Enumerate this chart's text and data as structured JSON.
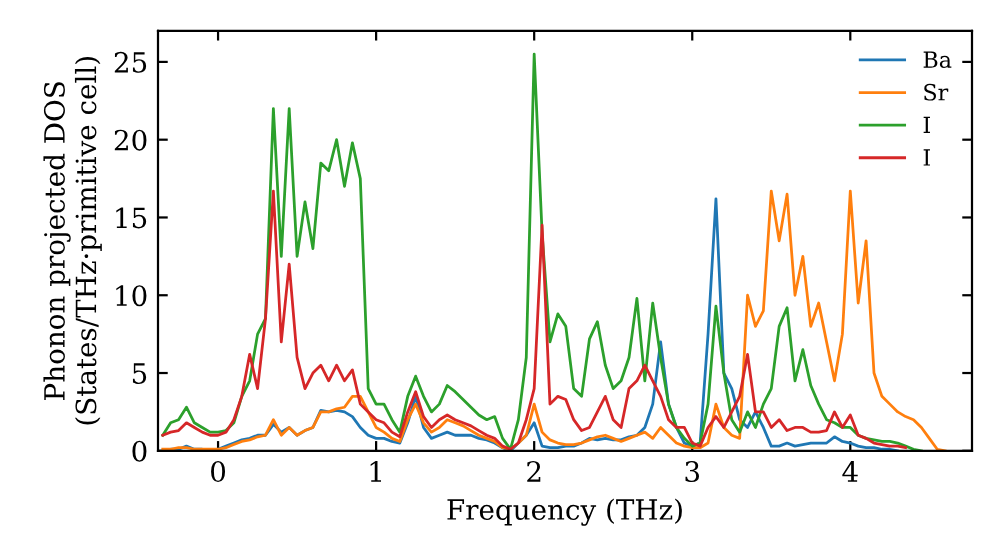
{
  "chart_data": {
    "type": "line",
    "xlabel": "Frequency (THz)",
    "ylabel": "Phonon projected DOS\n(States/THz·primitive cell)",
    "x": [
      -0.35,
      -0.3,
      -0.25,
      -0.2,
      -0.15,
      -0.1,
      -0.05,
      0,
      0.05,
      0.1,
      0.15,
      0.2,
      0.25,
      0.3,
      0.35,
      0.4,
      0.45,
      0.5,
      0.55,
      0.6,
      0.65,
      0.7,
      0.75,
      0.8,
      0.85,
      0.9,
      0.95,
      1.0,
      1.05,
      1.1,
      1.15,
      1.2,
      1.25,
      1.3,
      1.35,
      1.4,
      1.45,
      1.5,
      1.55,
      1.6,
      1.65,
      1.7,
      1.75,
      1.8,
      1.85,
      1.9,
      1.95,
      2.0,
      2.05,
      2.1,
      2.15,
      2.2,
      2.25,
      2.3,
      2.35,
      2.4,
      2.45,
      2.5,
      2.55,
      2.6,
      2.65,
      2.7,
      2.75,
      2.8,
      2.85,
      2.9,
      2.95,
      3.0,
      3.05,
      3.1,
      3.15,
      3.2,
      3.25,
      3.3,
      3.35,
      3.4,
      3.45,
      3.5,
      3.55,
      3.6,
      3.65,
      3.7,
      3.75,
      3.8,
      3.85,
      3.9,
      3.95,
      4.0,
      4.05,
      4.1,
      4.15,
      4.2,
      4.25,
      4.3,
      4.35,
      4.4,
      4.45,
      4.5,
      4.55,
      4.6
    ],
    "series": [
      {
        "name": "Ba",
        "color": "#1f77b4",
        "values": [
          0,
          0.1,
          0.1,
          0.3,
          0.1,
          0.1,
          0,
          0.1,
          0.3,
          0.5,
          0.7,
          0.8,
          1.0,
          1.0,
          1.7,
          1.2,
          1.5,
          1.0,
          1.3,
          1.5,
          2.6,
          2.5,
          2.6,
          2.5,
          2.2,
          1.5,
          1.0,
          0.8,
          0.8,
          0.6,
          0.5,
          1.8,
          3.5,
          1.5,
          0.8,
          1.0,
          1.2,
          1.0,
          1.0,
          1.0,
          0.8,
          0.7,
          0.5,
          0.2,
          0,
          0.5,
          1.0,
          1.8,
          0.3,
          0.2,
          0.2,
          0.3,
          0.3,
          0.5,
          0.8,
          0.7,
          0.8,
          0.7,
          0.7,
          0.9,
          1.0,
          1.5,
          3.0,
          7.0,
          3.0,
          1.5,
          0.5,
          0.3,
          0.5,
          7.5,
          16.2,
          5.0,
          4.0,
          2.0,
          1.5,
          2.5,
          1.5,
          0.3,
          0.3,
          0.5,
          0.3,
          0.4,
          0.5,
          0.5,
          0.5,
          0.9,
          0.6,
          0.5,
          0.3,
          0.2,
          0.2,
          0.1,
          0.1,
          0,
          null,
          null,
          null,
          null,
          null,
          null
        ]
      },
      {
        "name": "Sr",
        "color": "#ff7f0e",
        "values": [
          0.1,
          0.1,
          0.2,
          0.2,
          0.1,
          0.1,
          0.1,
          0.1,
          0.2,
          0.4,
          0.6,
          0.7,
          0.9,
          1.0,
          2.0,
          1.0,
          1.5,
          1.0,
          1.3,
          1.5,
          2.5,
          2.5,
          2.7,
          2.8,
          3.5,
          3.5,
          2.5,
          1.5,
          1.2,
          0.8,
          0.6,
          2.0,
          3.0,
          1.8,
          1.2,
          1.5,
          2.0,
          1.8,
          1.6,
          1.3,
          1.0,
          0.8,
          0.6,
          0.2,
          0.1,
          0.5,
          1.0,
          3.0,
          1.2,
          0.7,
          0.5,
          0.4,
          0.4,
          0.5,
          0.7,
          0.9,
          1.0,
          0.8,
          0.6,
          0.8,
          1.0,
          1.2,
          0.8,
          1.5,
          1.0,
          0.5,
          0.3,
          0.2,
          0.2,
          0.5,
          3.0,
          1.5,
          1.0,
          0.8,
          10.0,
          8.0,
          9.0,
          16.7,
          13.5,
          16.5,
          10.0,
          12.5,
          8.0,
          9.5,
          7.0,
          4.5,
          7.5,
          16.7,
          9.5,
          13.5,
          5.0,
          3.5,
          3.0,
          2.5,
          2.2,
          2.0,
          1.5,
          0.8,
          0.1,
          0
        ]
      },
      {
        "name": "I",
        "color": "#2ca02c",
        "values": [
          1.0,
          1.8,
          2.0,
          2.8,
          1.8,
          1.5,
          1.2,
          1.2,
          1.3,
          1.8,
          3.5,
          4.5,
          7.5,
          8.5,
          22.0,
          12.5,
          22.0,
          12.5,
          16.0,
          13.0,
          18.5,
          18.0,
          20.0,
          17.0,
          19.8,
          17.5,
          4.0,
          3.0,
          3.0,
          2.0,
          1.2,
          3.5,
          4.8,
          3.5,
          2.5,
          3.0,
          4.2,
          3.8,
          3.3,
          2.8,
          2.3,
          2.0,
          2.2,
          0.8,
          0.1,
          2.0,
          6.0,
          25.5,
          14.0,
          7.0,
          8.8,
          8.0,
          4.0,
          3.5,
          7.2,
          8.3,
          5.5,
          4.0,
          4.5,
          6.0,
          9.8,
          4.5,
          9.5,
          6.0,
          3.0,
          1.5,
          0.8,
          0.3,
          0.5,
          3.0,
          9.3,
          5.0,
          2.0,
          1.2,
          2.5,
          1.5,
          3.0,
          4.0,
          8.0,
          9.2,
          4.5,
          6.5,
          4.2,
          3.0,
          2.0,
          1.8,
          1.5,
          1.5,
          1.0,
          0.8,
          0.7,
          0.6,
          0.6,
          0.5,
          0.3,
          0.1,
          0,
          null,
          null,
          null
        ]
      },
      {
        "name": "I",
        "color": "#d62728",
        "values": [
          1.0,
          1.2,
          1.3,
          1.8,
          1.5,
          1.2,
          1.0,
          1.0,
          1.2,
          2.0,
          3.5,
          6.2,
          4.0,
          8.5,
          16.7,
          7.0,
          12.0,
          6.0,
          4.0,
          5.0,
          5.5,
          4.5,
          5.5,
          4.5,
          5.2,
          3.0,
          2.5,
          2.0,
          1.8,
          1.2,
          0.9,
          2.5,
          3.8,
          2.2,
          1.5,
          2.0,
          2.3,
          2.0,
          1.8,
          1.6,
          1.3,
          1.0,
          0.8,
          0.3,
          0.1,
          0.5,
          2.0,
          4.0,
          14.5,
          3.0,
          3.5,
          3.3,
          2.0,
          1.3,
          1.5,
          2.5,
          3.5,
          2.0,
          1.5,
          4.0,
          4.5,
          5.5,
          4.5,
          3.5,
          2.0,
          1.5,
          1.5,
          0.5,
          0.3,
          1.5,
          2.2,
          1.5,
          2.5,
          3.5,
          6.2,
          2.5,
          2.5,
          1.5,
          2.0,
          1.3,
          1.5,
          1.5,
          1.2,
          1.2,
          1.3,
          2.5,
          1.5,
          2.3,
          1.0,
          0.8,
          0.5,
          0.4,
          0.3,
          0.3,
          0.2,
          null,
          null,
          null,
          null,
          null
        ]
      }
    ],
    "xlim": [
      -0.38,
      4.77
    ],
    "ylim": [
      0,
      27
    ],
    "xticks": [
      0,
      1,
      2,
      3,
      4
    ],
    "yticks": [
      0,
      5,
      10,
      15,
      20,
      25
    ],
    "grid": false,
    "legend": "top right",
    "marker": "none",
    "line_style": "solid"
  }
}
